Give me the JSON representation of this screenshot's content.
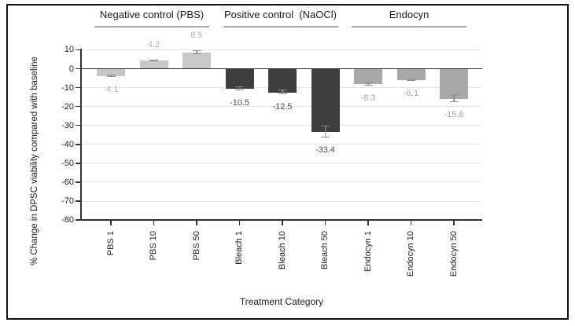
{
  "chart_data": {
    "type": "bar",
    "title": "",
    "xlabel": "Treatment Category",
    "ylabel": "% Change in DPSC viability compared with baseline",
    "ylim": [
      -80,
      10
    ],
    "yticks": [
      10,
      0,
      -10,
      -20,
      -30,
      -40,
      -50,
      -60,
      -70,
      -80
    ],
    "grid": true,
    "legend_position": "none",
    "groups": [
      {
        "label": "Negative control (PBS)",
        "bar_color": "#c7c7c7",
        "value_label_color": "#b2b2b2",
        "bars": [
          {
            "category": "PBS 1",
            "value": -4.1,
            "value_label": "-4.1",
            "error": 0.8
          },
          {
            "category": "PBS 10",
            "value": 4.2,
            "value_label": "4.2",
            "error": 0.7
          },
          {
            "category": "PBS 50",
            "value": 8.5,
            "value_label": "8.5",
            "error": 1.2
          }
        ]
      },
      {
        "label": "Positive control  (NaOCl)",
        "bar_color": "#3e3e3e",
        "value_label_color": "#4f4f4f",
        "bars": [
          {
            "category": "Bleach 1",
            "value": -10.5,
            "value_label": "-10.5",
            "error": 1.2
          },
          {
            "category": "Bleach 10",
            "value": -12.5,
            "value_label": "-12.5",
            "error": 1.6
          },
          {
            "category": "Bleach 50",
            "value": -33.4,
            "value_label": "-33.4",
            "error": 3.4
          }
        ]
      },
      {
        "label": "Endocyn",
        "bar_color": "#a8a8a8",
        "value_label_color": "#a4a4a4",
        "bars": [
          {
            "category": "Endocyn 1",
            "value": -8.3,
            "value_label": "-8.3",
            "error": 1.2
          },
          {
            "category": "Endocyn 10",
            "value": -6.1,
            "value_label": "-6.1",
            "error": 0.9
          },
          {
            "category": "Endocyn 50",
            "value": -15.8,
            "value_label": "-15.8",
            "error": 2.2
          }
        ]
      }
    ],
    "colors": {
      "gridline": "#e3e3e3",
      "axis": "#333333",
      "zero_line": "#2b2b2b",
      "error_bar": "#8f8f8f",
      "header_underline": "#a8a8a8",
      "tick_label": "#1f1f1f",
      "header_text": "#1b1b1b"
    }
  }
}
